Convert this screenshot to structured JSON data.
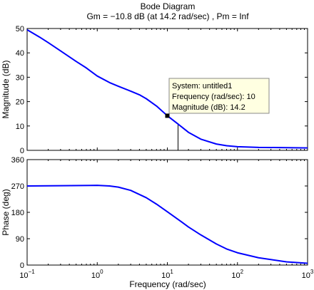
{
  "title": "Bode Diagram",
  "subtitle": "Gm = −10.8 dB (at 14.2 rad/sec) ,  Pm = Inf",
  "xlabel": "Frequency  (rad/sec)",
  "line_color": "#0000ff",
  "chart_data": [
    {
      "type": "line",
      "name": "magnitude",
      "ylabel": "Magnitude (dB)",
      "xscale": "log",
      "xlim": [
        0.1,
        1000
      ],
      "ylim": [
        0,
        50
      ],
      "yticks": [
        0,
        10,
        20,
        30,
        40,
        50
      ],
      "series": [
        {
          "x": [
            0.1,
            0.15,
            0.2,
            0.3,
            0.5,
            0.7,
            1,
            1.5,
            2,
            3,
            4,
            5,
            7,
            10,
            14.2,
            20,
            30,
            50,
            70,
            100,
            200,
            500,
            1000
          ],
          "y": [
            49.5,
            46.5,
            44.2,
            40.8,
            36.5,
            33.8,
            30.5,
            27.8,
            26.3,
            24.3,
            22.8,
            21.2,
            18.2,
            14.2,
            10.8,
            7.4,
            4.6,
            2.6,
            1.9,
            1.5,
            1.2,
            1.1,
            1.0
          ]
        }
      ],
      "marker": {
        "x": 10,
        "y": 14.2
      },
      "gain_margin_line": {
        "x": 14.2,
        "y_from": 0,
        "y_to": 10.8
      },
      "datatip": {
        "system": "System: untitled1",
        "frequency": "Frequency (rad/sec): 10",
        "magnitude": "Magnitude (dB): 14.2"
      }
    },
    {
      "type": "line",
      "name": "phase",
      "ylabel": "Phase (deg)",
      "xscale": "log",
      "xlim": [
        0.1,
        1000
      ],
      "ylim": [
        0,
        360
      ],
      "yticks": [
        0,
        90,
        180,
        270,
        360
      ],
      "xticks": [
        {
          "base": "10",
          "exp": "−1"
        },
        {
          "base": "10",
          "exp": "0"
        },
        {
          "base": "10",
          "exp": "1"
        },
        {
          "base": "10",
          "exp": "2"
        },
        {
          "base": "10",
          "exp": "3"
        }
      ],
      "series": [
        {
          "x": [
            0.1,
            0.3,
            1,
            1.5,
            2,
            3,
            5,
            7,
            10,
            15,
            20,
            30,
            50,
            70,
            100,
            200,
            500,
            1000
          ],
          "y": [
            270,
            271,
            272,
            270,
            266,
            255,
            230,
            208,
            182,
            152,
            130,
            103,
            72,
            55,
            42,
            25,
            11,
            6
          ]
        }
      ]
    }
  ]
}
